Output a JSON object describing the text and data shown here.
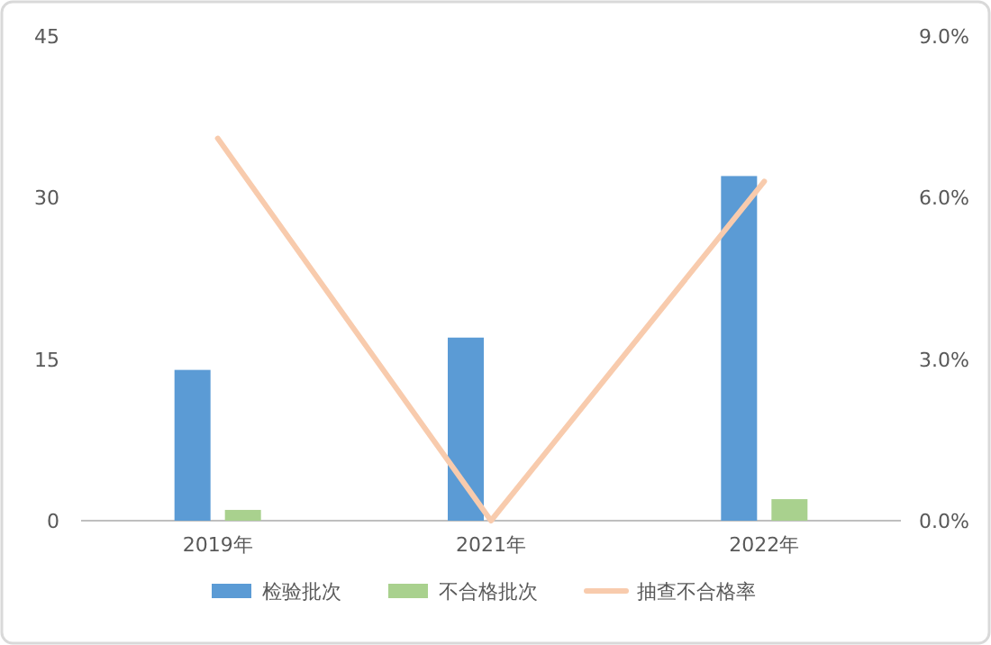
{
  "chart_data": {
    "type": "bar",
    "categories": [
      "2019年",
      "2021年",
      "2022年"
    ],
    "series": [
      {
        "name": "检验批次",
        "color": "#5b9bd5",
        "values": [
          14,
          17,
          32
        ]
      },
      {
        "name": "不合格批次",
        "color": "#a9d18e",
        "values": [
          1,
          0,
          2
        ]
      },
      {
        "name": "抽查不合格率",
        "type": "line",
        "axis": "y2",
        "color": "#f8cbad",
        "values": [
          7.1,
          0,
          6.3
        ]
      }
    ],
    "ylim": [
      0,
      45
    ],
    "yticks": [
      0,
      15,
      30,
      45
    ],
    "y2lim": [
      0,
      9
    ],
    "y2ticks": [
      {
        "value": 0,
        "label": "0.0%"
      },
      {
        "value": 3,
        "label": "3.0%"
      },
      {
        "value": 6,
        "label": "6.0%"
      },
      {
        "value": 9,
        "label": "9.0%"
      }
    ],
    "legend": "bottom"
  }
}
